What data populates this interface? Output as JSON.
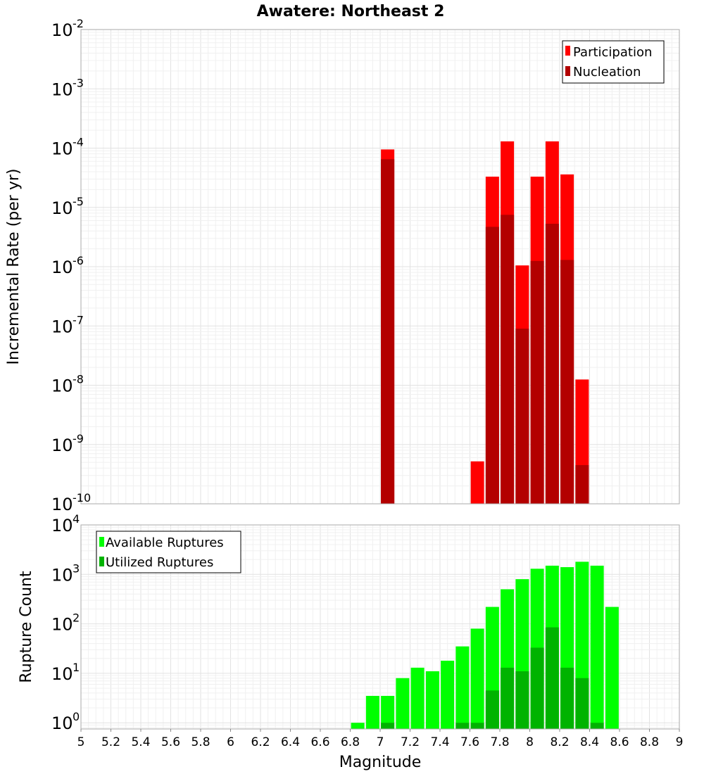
{
  "chart_data": [
    {
      "type": "bar",
      "title": "Awatere: Northeast 2",
      "xlabel": "",
      "ylabel": "Incremental Rate (per yr)",
      "yscale": "log",
      "ylim": [
        1e-10,
        0.01
      ],
      "xlim": [
        5,
        9
      ],
      "grid": true,
      "legend_position": "top-right",
      "x": [
        7.05,
        7.65,
        7.75,
        7.85,
        7.95,
        8.05,
        8.15,
        8.25,
        8.35
      ],
      "series": [
        {
          "name": "Participation",
          "color": "#ff0000",
          "values": [
            9.5e-05,
            5.2e-10,
            3.3e-05,
            0.00013,
            1.05e-06,
            3.3e-05,
            0.00013,
            3.6e-05,
            1.25e-08
          ]
        },
        {
          "name": "Nucleation",
          "color": "#b30000",
          "values": [
            6.5e-05,
            null,
            4.7e-06,
            7.5e-06,
            9e-08,
            1.25e-06,
            5.3e-06,
            1.3e-06,
            4.5e-10
          ]
        }
      ]
    },
    {
      "type": "bar",
      "title": "",
      "xlabel": "Magnitude",
      "ylabel": "Rupture Count",
      "yscale": "log",
      "ylim": [
        0.75,
        10000
      ],
      "xlim": [
        5,
        9
      ],
      "grid": true,
      "legend_position": "top-left",
      "x": [
        6.85,
        6.95,
        7.05,
        7.15,
        7.25,
        7.35,
        7.45,
        7.55,
        7.65,
        7.75,
        7.85,
        7.95,
        8.05,
        8.15,
        8.25,
        8.35,
        8.45,
        8.55
      ],
      "series": [
        {
          "name": "Available Ruptures",
          "color": "#00ff00",
          "values": [
            1,
            3.5,
            3.5,
            8,
            13,
            11,
            18,
            35,
            80,
            220,
            500,
            800,
            1300,
            1500,
            1400,
            1800,
            1500,
            220
          ]
        },
        {
          "name": "Utilized Ruptures",
          "color": "#00b300",
          "values": [
            null,
            null,
            1,
            null,
            null,
            null,
            null,
            1,
            1,
            4.5,
            13,
            11,
            33,
            85,
            13,
            8,
            1,
            null
          ]
        }
      ],
      "xticks": [
        "5",
        "5.2",
        "5.4",
        "5.6",
        "5.8",
        "6",
        "6.2",
        "6.4",
        "6.6",
        "6.8",
        "7",
        "7.2",
        "7.4",
        "7.6",
        "7.8",
        "8",
        "8.2",
        "8.4",
        "8.6",
        "8.8",
        "9"
      ]
    }
  ],
  "top_yticks": [
    {
      "base": "10",
      "exp": "-2"
    },
    {
      "base": "10",
      "exp": "-3"
    },
    {
      "base": "10",
      "exp": "-4"
    },
    {
      "base": "10",
      "exp": "-5"
    },
    {
      "base": "10",
      "exp": "-6"
    },
    {
      "base": "10",
      "exp": "-7"
    },
    {
      "base": "10",
      "exp": "-8"
    },
    {
      "base": "10",
      "exp": "-9"
    },
    {
      "base": "10",
      "exp": "-10"
    }
  ],
  "bottom_yticks": [
    {
      "base": "10",
      "exp": "4"
    },
    {
      "base": "10",
      "exp": "3"
    },
    {
      "base": "10",
      "exp": "2"
    },
    {
      "base": "10",
      "exp": "1"
    },
    {
      "base": "10",
      "exp": "0"
    }
  ]
}
